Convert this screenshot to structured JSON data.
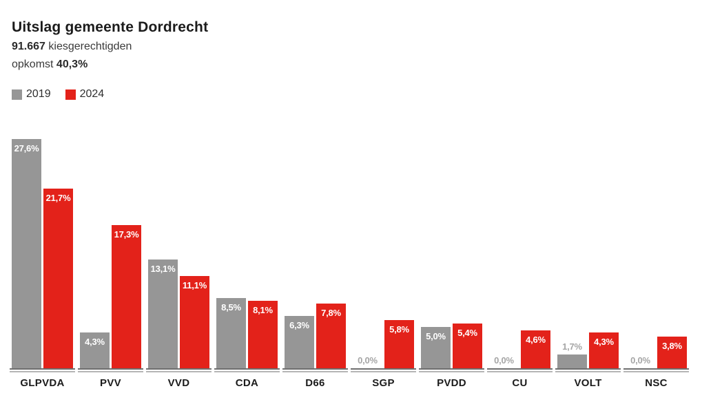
{
  "header": {
    "title": "Uitslag gemeente Dordrecht",
    "electorate_value": "91.667",
    "electorate_label": "kiesgerechtigden",
    "turnout_label": "opkomst",
    "turnout_value": "40,3%"
  },
  "legend": [
    {
      "label": "2019",
      "color": "#969696"
    },
    {
      "label": "2024",
      "color": "#e3221a"
    }
  ],
  "chart_data": {
    "type": "bar",
    "title": "Uitslag gemeente Dordrecht",
    "categories": [
      "GLPVDA",
      "PVV",
      "VVD",
      "CDA",
      "D66",
      "SGP",
      "PVDD",
      "CU",
      "VOLT",
      "NSC"
    ],
    "series": [
      {
        "name": "2019",
        "color": "#969696",
        "values": [
          27.6,
          4.3,
          13.1,
          8.5,
          6.3,
          0.0,
          5.0,
          0.0,
          1.7,
          0.0
        ],
        "labels": [
          "27,6%",
          "4,3%",
          "13,1%",
          "8,5%",
          "6,3%",
          "0,0%",
          "5,0%",
          "0,0%",
          "1,7%",
          "0,0%"
        ]
      },
      {
        "name": "2024",
        "color": "#e3221a",
        "values": [
          21.7,
          17.3,
          11.1,
          8.1,
          7.8,
          5.8,
          5.4,
          4.6,
          4.3,
          3.8
        ],
        "labels": [
          "21,7%",
          "17,3%",
          "11,1%",
          "8,1%",
          "7,8%",
          "5,8%",
          "5,4%",
          "4,6%",
          "4,3%",
          "3,8%"
        ]
      }
    ],
    "xlabel": "",
    "ylabel": "",
    "ylim": [
      0,
      28
    ],
    "grid": false,
    "legend_position": "top-left",
    "value_label_colors": {
      "inside": "#ffffff",
      "outside": "#a5a5a5"
    }
  }
}
